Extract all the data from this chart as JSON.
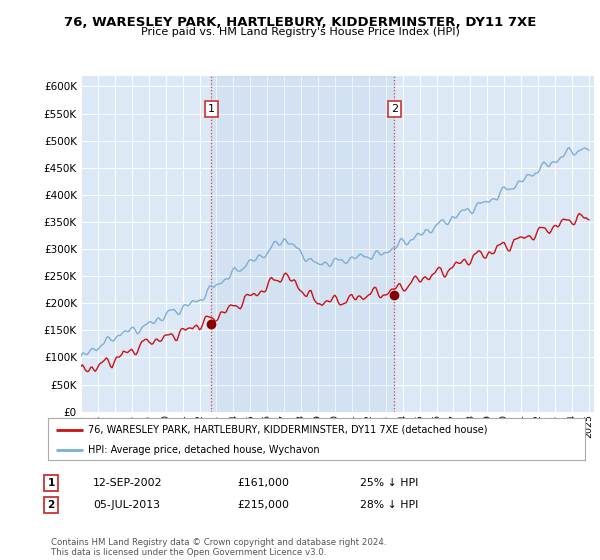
{
  "title1": "76, WARESLEY PARK, HARTLEBURY, KIDDERMINSTER, DY11 7XE",
  "title2": "Price paid vs. HM Land Registry's House Price Index (HPI)",
  "ytick_values": [
    0,
    50000,
    100000,
    150000,
    200000,
    250000,
    300000,
    350000,
    400000,
    450000,
    500000,
    550000,
    600000
  ],
  "year_start": 1995,
  "year_end": 2025,
  "sale1_year": 2002.7,
  "sale1_price": 161000,
  "sale1_label": "1",
  "sale2_year": 2013.5,
  "sale2_price": 215000,
  "sale2_label": "2",
  "hpi_color": "#7bafd4",
  "price_color": "#cc1111",
  "legend_line1": "76, WARESLEY PARK, HARTLEBURY, KIDDERMINSTER, DY11 7XE (detached house)",
  "legend_line2": "HPI: Average price, detached house, Wychavon",
  "footer": "Contains HM Land Registry data © Crown copyright and database right 2024.\nThis data is licensed under the Open Government Licence v3.0.",
  "plot_bg_color": "#dce8f5"
}
